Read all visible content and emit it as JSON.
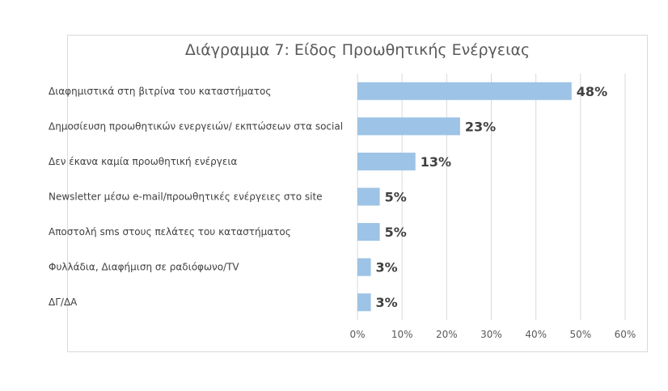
{
  "chart_data": {
    "type": "bar",
    "orientation": "horizontal",
    "title": "Διάγραμμα 7: Είδος Προωθητικής Ενέργειας",
    "categories": [
      "Διαφημιστικά στη βιτρίνα του καταστήματος",
      "Δημοσίευση προωθητικών ενεργειών/ εκπτώσεων στα social",
      "Δεν έκανα καμία προωθητική ενέργεια",
      "Newsletter μέσω e-mail/προωθητικές ενέργειες στο site",
      "Αποστολή sms στους πελάτες του καταστήματος",
      "Φυλλάδια, Διαφήμιση σε ραδιόφωνο/TV",
      "ΔΓ/ΔΑ"
    ],
    "values": [
      48,
      23,
      13,
      5,
      5,
      3,
      3
    ],
    "value_labels": [
      "48%",
      "23%",
      "13%",
      "5%",
      "5%",
      "3%",
      "3%"
    ],
    "xlim": [
      0,
      60
    ],
    "xticks": [
      0,
      10,
      20,
      30,
      40,
      50,
      60
    ],
    "xtick_labels": [
      "0%",
      "10%",
      "20%",
      "30%",
      "40%",
      "50%",
      "60%"
    ],
    "grid": true,
    "legend": "none",
    "bar_color": "#9dc3e6",
    "grid_color": "#d9d9d9"
  }
}
